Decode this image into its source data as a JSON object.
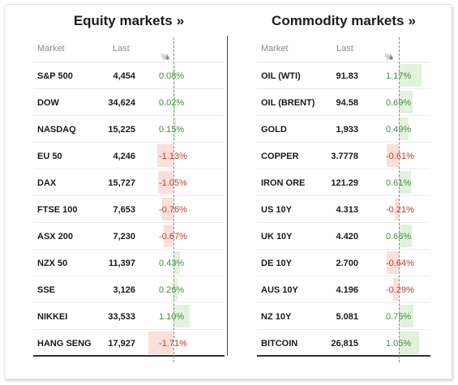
{
  "equity": {
    "title": "Equity markets",
    "title_suffix": "»",
    "headers": {
      "market": "Market",
      "last": "Last",
      "pct": "%"
    },
    "sort_icon": "triangle-up-icon",
    "rows": [
      {
        "name": "S&P 500",
        "last": "4,454",
        "pct": "0.08%",
        "value": 0.08
      },
      {
        "name": "DOW",
        "last": "34,624",
        "pct": "0.02%",
        "value": 0.02
      },
      {
        "name": "NASDAQ",
        "last": "15,225",
        "pct": "0.15%",
        "value": 0.15
      },
      {
        "name": "EU 50",
        "last": "4,246",
        "pct": "-1.13%",
        "value": -1.13
      },
      {
        "name": "DAX",
        "last": "15,727",
        "pct": "-1.05%",
        "value": -1.05
      },
      {
        "name": "FTSE 100",
        "last": "7,653",
        "pct": "-0.76%",
        "value": -0.76
      },
      {
        "name": "ASX 200",
        "last": "7,230",
        "pct": "-0.67%",
        "value": -0.67
      },
      {
        "name": "NZX 50",
        "last": "11,397",
        "pct": "0.43%",
        "value": 0.43
      },
      {
        "name": "SSE",
        "last": "3,126",
        "pct": "0.26%",
        "value": 0.26
      },
      {
        "name": "NIKKEI",
        "last": "33,533",
        "pct": "1.10%",
        "value": 1.1
      },
      {
        "name": "HANG SENG",
        "last": "17,927",
        "pct": "-1.71%",
        "value": -1.71
      }
    ]
  },
  "commodity": {
    "title": "Commodity markets",
    "title_suffix": "»",
    "headers": {
      "market": "Market",
      "last": "Last",
      "pct": "%"
    },
    "sort_icon": "triangle-up-icon",
    "rows": [
      {
        "name": "OIL (WTI)",
        "last": "91.83",
        "pct": "1.17%",
        "value": 1.17
      },
      {
        "name": "OIL (BRENT)",
        "last": "94.58",
        "pct": "0.69%",
        "value": 0.69
      },
      {
        "name": "GOLD",
        "last": "1,933",
        "pct": "0.49%",
        "value": 0.49
      },
      {
        "name": "COPPER",
        "last": "3.7778",
        "pct": "-0.61%",
        "value": -0.61
      },
      {
        "name": "IRON ORE",
        "last": "121.29",
        "pct": "0.61%",
        "value": 0.61
      },
      {
        "name": "US 10Y",
        "last": "4.313",
        "pct": "-0.21%",
        "value": -0.21
      },
      {
        "name": "UK 10Y",
        "last": "4.420",
        "pct": "0.66%",
        "value": 0.66
      },
      {
        "name": "DE 10Y",
        "last": "2.700",
        "pct": "-0.64%",
        "value": -0.64
      },
      {
        "name": "AUS 10Y",
        "last": "4.196",
        "pct": "-0.29%",
        "value": -0.29
      },
      {
        "name": "NZ 10Y",
        "last": "5.081",
        "pct": "0.75%",
        "value": 0.75
      },
      {
        "name": "BITCOIN",
        "last": "26,815",
        "pct": "1.05%",
        "value": 1.05
      }
    ]
  },
  "colors": {
    "positive": "#3f8f3f",
    "negative": "#c0392b",
    "positive_bar": "#e2f2dd",
    "negative_bar": "#fbe0da"
  }
}
